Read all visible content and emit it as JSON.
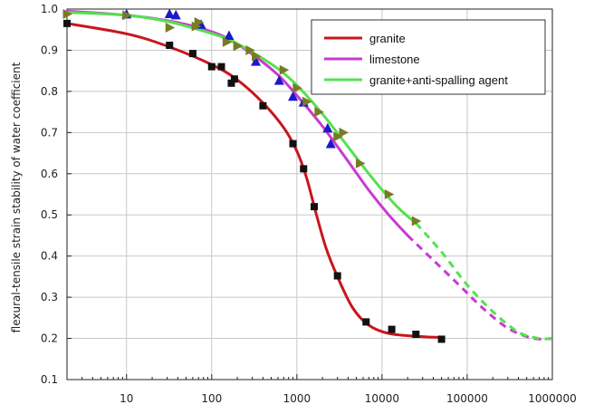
{
  "chart_data": {
    "type": "line",
    "xscale": "log",
    "xlim": [
      2,
      1000000
    ],
    "ylim": [
      0.1,
      1.0
    ],
    "xticks": [
      10,
      100,
      1000,
      10000,
      100000,
      1000000
    ],
    "xtick_labels": [
      "10",
      "100",
      "1000",
      "10000",
      "100000",
      "1000000"
    ],
    "yticks": [
      0.1,
      0.2,
      0.3,
      0.4,
      0.5,
      0.6,
      0.7,
      0.8,
      0.9,
      1.0
    ],
    "ytick_labels": [
      "0.1",
      "0.2",
      "0.3",
      "0.4",
      "0.5",
      "0.6",
      "0.7",
      "0.8",
      "0.9",
      "1.0"
    ],
    "ylabel": "flexural-tensile strain  stability of water  coefficient",
    "xlabel": "",
    "title": "",
    "grid": true,
    "legend_position": "top-right",
    "series": [
      {
        "name": "granite",
        "color": "#c8161d",
        "marker": "square",
        "marker_color": "#111111",
        "points": [
          [
            2,
            0.965
          ],
          [
            32,
            0.912
          ],
          [
            60,
            0.892
          ],
          [
            100,
            0.86
          ],
          [
            130,
            0.86
          ],
          [
            170,
            0.82
          ],
          [
            185,
            0.83
          ],
          [
            400,
            0.765
          ],
          [
            900,
            0.673
          ],
          [
            1200,
            0.612
          ],
          [
            1600,
            0.52
          ],
          [
            3000,
            0.352
          ],
          [
            6500,
            0.24
          ],
          [
            13000,
            0.222
          ],
          [
            25000,
            0.21
          ],
          [
            50000,
            0.198
          ]
        ],
        "curve": [
          [
            2,
            0.965
          ],
          [
            10,
            0.94
          ],
          [
            30,
            0.91
          ],
          [
            100,
            0.865
          ],
          [
            200,
            0.828
          ],
          [
            400,
            0.772
          ],
          [
            700,
            0.712
          ],
          [
            1000,
            0.655
          ],
          [
            1300,
            0.59
          ],
          [
            1700,
            0.5
          ],
          [
            2200,
            0.42
          ],
          [
            3000,
            0.35
          ],
          [
            4500,
            0.275
          ],
          [
            7000,
            0.232
          ],
          [
            12000,
            0.212
          ],
          [
            25000,
            0.205
          ],
          [
            50000,
            0.202
          ]
        ]
      },
      {
        "name": "limestone",
        "color": "#c83ad0",
        "marker": "triangle-up",
        "marker_color": "#1a1ac8",
        "points": [
          [
            10,
            0.987
          ],
          [
            32,
            0.988
          ],
          [
            38,
            0.985
          ],
          [
            75,
            0.962
          ],
          [
            160,
            0.935
          ],
          [
            330,
            0.872
          ],
          [
            620,
            0.826
          ],
          [
            900,
            0.787
          ],
          [
            1200,
            0.773
          ],
          [
            2300,
            0.71
          ],
          [
            2500,
            0.672
          ]
        ],
        "curve": [
          [
            2,
            0.995
          ],
          [
            10,
            0.985
          ],
          [
            30,
            0.972
          ],
          [
            70,
            0.955
          ],
          [
            150,
            0.93
          ],
          [
            300,
            0.89
          ],
          [
            600,
            0.84
          ],
          [
            1000,
            0.79
          ],
          [
            2000,
            0.715
          ],
          [
            4000,
            0.63
          ],
          [
            7000,
            0.56
          ],
          [
            12000,
            0.5
          ],
          [
            20000,
            0.45
          ]
        ],
        "extrapolation": [
          [
            20000,
            0.45
          ],
          [
            40000,
            0.39
          ],
          [
            80000,
            0.33
          ],
          [
            150000,
            0.275
          ],
          [
            300000,
            0.225
          ],
          [
            600000,
            0.2
          ],
          [
            1000000,
            0.2
          ]
        ]
      },
      {
        "name": "granite+anti-spalling agent",
        "color": "#55e050",
        "marker": "triangle-right",
        "marker_color": "#7a7a25",
        "points": [
          [
            2,
            0.988
          ],
          [
            10,
            0.985
          ],
          [
            32,
            0.955
          ],
          [
            65,
            0.958
          ],
          [
            70,
            0.968
          ],
          [
            150,
            0.92
          ],
          [
            200,
            0.91
          ],
          [
            280,
            0.9
          ],
          [
            330,
            0.885
          ],
          [
            700,
            0.852
          ],
          [
            1000,
            0.808
          ],
          [
            1300,
            0.775
          ],
          [
            1800,
            0.75
          ],
          [
            3000,
            0.69
          ],
          [
            3500,
            0.7
          ],
          [
            5500,
            0.625
          ],
          [
            12000,
            0.55
          ],
          [
            25000,
            0.485
          ]
        ],
        "curve": [
          [
            2,
            0.992
          ],
          [
            10,
            0.985
          ],
          [
            30,
            0.97
          ],
          [
            70,
            0.95
          ],
          [
            150,
            0.928
          ],
          [
            300,
            0.895
          ],
          [
            600,
            0.855
          ],
          [
            1000,
            0.815
          ],
          [
            2000,
            0.745
          ],
          [
            4000,
            0.665
          ],
          [
            8000,
            0.585
          ],
          [
            15000,
            0.52
          ],
          [
            25000,
            0.48
          ]
        ],
        "extrapolation": [
          [
            25000,
            0.48
          ],
          [
            50000,
            0.41
          ],
          [
            100000,
            0.33
          ],
          [
            200000,
            0.265
          ],
          [
            400000,
            0.215
          ],
          [
            700000,
            0.2
          ],
          [
            1000000,
            0.2
          ]
        ]
      }
    ]
  }
}
